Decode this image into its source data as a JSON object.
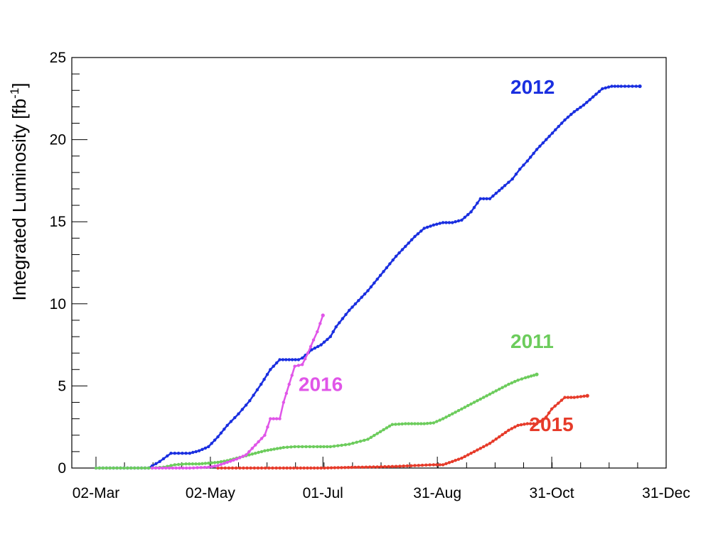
{
  "chart_data": {
    "type": "line",
    "title": "",
    "xlabel": "",
    "ylabel": "Integrated Luminosity [fb",
    "ylabel_sup": "-1",
    "ylabel_close": "]",
    "x_ticks": [
      {
        "label": "02-Mar",
        "day": 0
      },
      {
        "label": "02-May",
        "day": 61
      },
      {
        "label": "01-Jul",
        "day": 121
      },
      {
        "label": "31-Aug",
        "day": 182
      },
      {
        "label": "31-Oct",
        "day": 243
      },
      {
        "label": "31-Dec",
        "day": 304
      }
    ],
    "xlim": [
      0,
      304
    ],
    "ylim": [
      0,
      25
    ],
    "y_ticks": [
      0,
      5,
      10,
      15,
      20,
      25
    ],
    "grid": false,
    "series": [
      {
        "name": "2012",
        "color": "#1a2fe0",
        "label_pos": [
          221,
          22.8
        ],
        "x": [
          0,
          28,
          34,
          40,
          50,
          55,
          60,
          65,
          70,
          76,
          82,
          88,
          93,
          98,
          103,
          108,
          110,
          115,
          120,
          125,
          128,
          135,
          140,
          145,
          150,
          155,
          160,
          165,
          170,
          175,
          180,
          185,
          190,
          195,
          200,
          205,
          210,
          215,
          218,
          222,
          226,
          230,
          235,
          240,
          245,
          250,
          255,
          260,
          265,
          270,
          275,
          280,
          290
        ],
        "y": [
          0,
          0,
          0.4,
          0.9,
          0.9,
          1.05,
          1.3,
          1.9,
          2.6,
          3.3,
          4.1,
          5.1,
          6.0,
          6.6,
          6.6,
          6.6,
          6.7,
          7.2,
          7.5,
          8.0,
          8.6,
          9.6,
          10.2,
          10.8,
          11.5,
          12.2,
          12.9,
          13.5,
          14.1,
          14.6,
          14.8,
          14.95,
          14.95,
          15.1,
          15.6,
          16.4,
          16.4,
          16.9,
          17.2,
          17.6,
          18.2,
          18.7,
          19.4,
          20.0,
          20.6,
          21.2,
          21.7,
          22.1,
          22.6,
          23.1,
          23.25,
          23.25,
          23.25
        ]
      },
      {
        "name": "2011",
        "color": "#6ccc5c",
        "label_pos": [
          221,
          7.3
        ],
        "x": [
          0,
          30,
          36,
          42,
          48,
          55,
          60,
          65,
          70,
          75,
          80,
          85,
          90,
          95,
          100,
          106,
          112,
          118,
          125,
          135,
          145,
          150,
          155,
          158,
          165,
          170,
          175,
          180,
          185,
          190,
          195,
          200,
          205,
          210,
          215,
          220,
          225,
          229,
          232,
          235
        ],
        "y": [
          0,
          0,
          0.05,
          0.2,
          0.25,
          0.25,
          0.3,
          0.35,
          0.45,
          0.6,
          0.75,
          0.9,
          1.05,
          1.15,
          1.25,
          1.3,
          1.3,
          1.3,
          1.3,
          1.45,
          1.75,
          2.1,
          2.45,
          2.65,
          2.7,
          2.7,
          2.7,
          2.75,
          3.0,
          3.3,
          3.6,
          3.9,
          4.2,
          4.5,
          4.8,
          5.1,
          5.35,
          5.5,
          5.6,
          5.7
        ]
      },
      {
        "name": "2015",
        "color": "#e63b2a",
        "label_pos": [
          231,
          2.25
        ],
        "x": [
          65,
          100,
          120,
          140,
          150,
          160,
          170,
          180,
          185,
          190,
          195,
          200,
          205,
          210,
          215,
          220,
          225,
          230,
          235,
          240,
          243,
          250,
          255,
          262
        ],
        "y": [
          0,
          0,
          0,
          0.05,
          0.07,
          0.1,
          0.15,
          0.2,
          0.2,
          0.4,
          0.6,
          0.9,
          1.2,
          1.5,
          1.9,
          2.3,
          2.6,
          2.7,
          2.7,
          3.1,
          3.6,
          4.3,
          4.3,
          4.4
        ]
      },
      {
        "name": "2016",
        "color": "#e055e8",
        "label_pos": [
          108,
          4.7
        ],
        "x": [
          30,
          50,
          60,
          65,
          70,
          75,
          80,
          85,
          90,
          93,
          98,
          100,
          103,
          106,
          110,
          113,
          116,
          118,
          121
        ],
        "y": [
          0,
          0,
          0.05,
          0.15,
          0.35,
          0.55,
          0.8,
          1.4,
          2.0,
          3.0,
          3.0,
          4.0,
          5.1,
          6.2,
          6.3,
          7.0,
          7.8,
          8.3,
          9.3
        ]
      }
    ]
  }
}
